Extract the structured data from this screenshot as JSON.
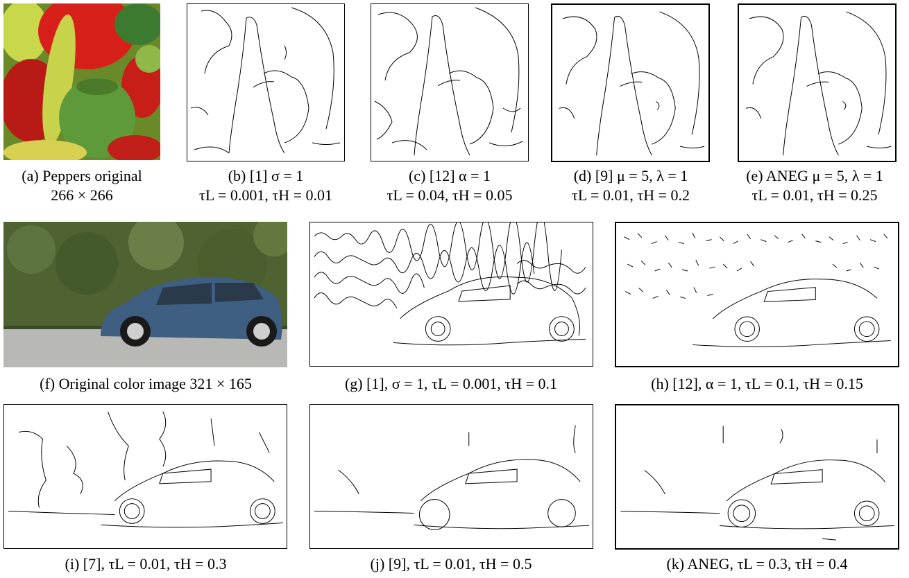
{
  "figure": {
    "row1": {
      "a": {
        "line1": "(a) Peppers original",
        "line2": "266 × 266"
      },
      "b": {
        "line1": "(b) [1] σ = 1",
        "line2": "τL = 0.001, τH = 0.01"
      },
      "c": {
        "line1": "(c) [12] α = 1",
        "line2": "τL = 0.04, τH = 0.05"
      },
      "d": {
        "line1": "(d) [9] μ = 5, λ = 1",
        "line2": "τL = 0.01, τH = 0.2"
      },
      "e": {
        "line1": "(e) ANEG μ = 5, λ = 1",
        "line2": "τL = 0.01, τH = 0.25"
      }
    },
    "row2": {
      "f": {
        "caption": "(f) Original color image 321 × 165"
      },
      "g": {
        "caption": "(g) [1], σ = 1, τL = 0.001, τH = 0.1"
      },
      "h": {
        "caption": "(h) [12], α = 1, τL = 0.1, τH = 0.15"
      }
    },
    "row3": {
      "i": {
        "caption": "(i) [7], τL = 0.01, τH = 0.3"
      },
      "j": {
        "caption": "(j) [9], τL = 0.01, τH = 0.5"
      },
      "k": {
        "caption": "(k) ANEG, τL = 0.3, τH = 0.4"
      }
    }
  }
}
